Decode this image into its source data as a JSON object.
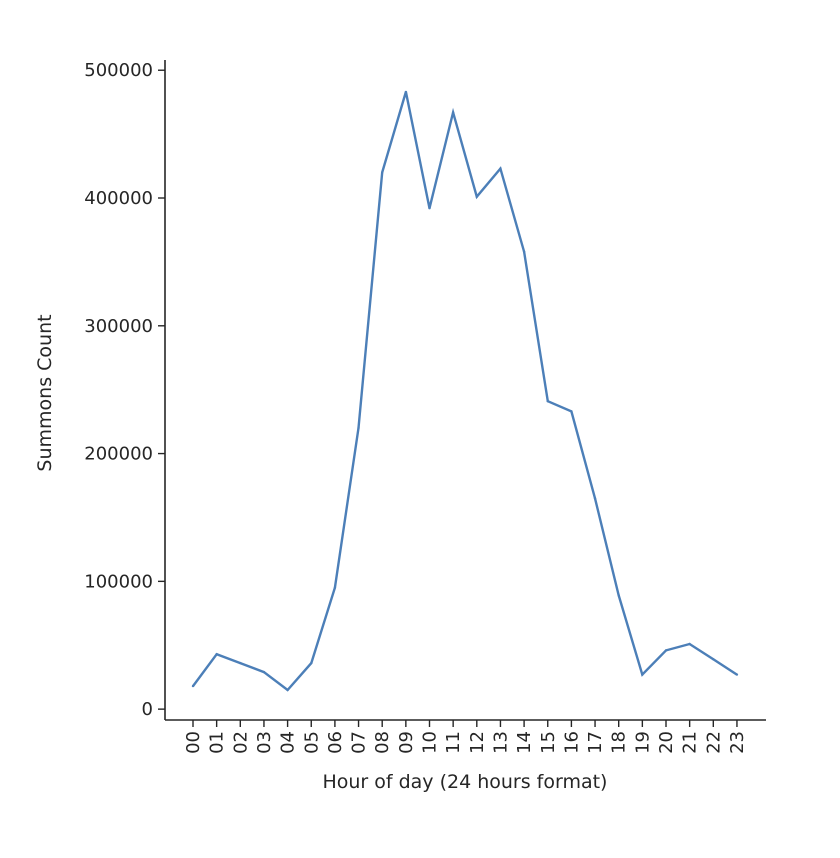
{
  "chart_data": {
    "type": "line",
    "xlabel": "Hour of day (24 hours format)",
    "ylabel": "Summons Count",
    "categories": [
      "00",
      "01",
      "02",
      "03",
      "04",
      "05",
      "06",
      "07",
      "08",
      "09",
      "10",
      "11",
      "12",
      "13",
      "14",
      "15",
      "16",
      "17",
      "18",
      "19",
      "20",
      "21",
      "22",
      "23"
    ],
    "series": [
      {
        "values": [
          18000,
          43000,
          36000,
          29000,
          15000,
          36000,
          95000,
          220000,
          420000,
          483000,
          392000,
          467000,
          401000,
          423000,
          358000,
          241000,
          233000,
          165000,
          89000,
          27000,
          46000,
          51000,
          39000,
          27000
        ],
        "color": "#4c7fb8"
      }
    ],
    "ylim": [
      -8500,
      508000
    ],
    "yticks": [
      0,
      100000,
      200000,
      300000,
      400000,
      500000
    ],
    "ytick_labels": [
      "0",
      "100000",
      "200000",
      "300000",
      "400000",
      "500000"
    ],
    "grid": false,
    "spines": [
      "left",
      "bottom"
    ]
  }
}
